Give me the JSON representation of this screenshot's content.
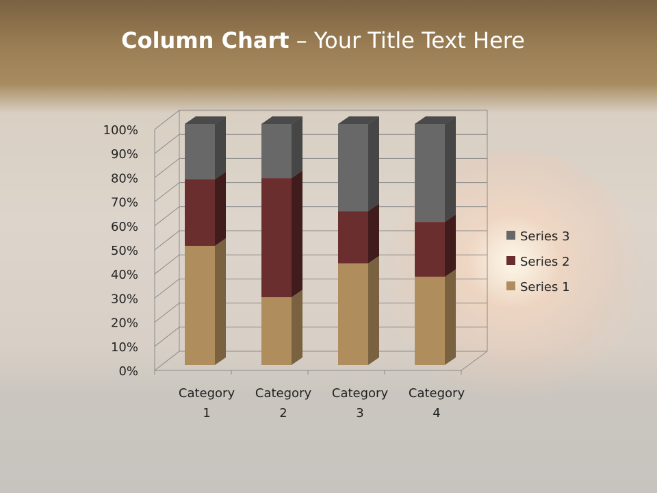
{
  "title": {
    "bold": "Column Chart",
    "rest": " – Your Title Text Here"
  },
  "chart_data": {
    "type": "bar",
    "stacking": "percent",
    "style": "3d",
    "categories": [
      "Category 1",
      "Category 2",
      "Category 3",
      "Category 4"
    ],
    "category_lines": [
      [
        "Category",
        "1"
      ],
      [
        "Category",
        "2"
      ],
      [
        "Category",
        "3"
      ],
      [
        "Category",
        "4"
      ]
    ],
    "series": [
      {
        "name": "Series 1",
        "values": [
          4.3,
          2.5,
          3.5,
          4.5
        ],
        "color": "#b08d5c",
        "side": "#7a6240"
      },
      {
        "name": "Series 2",
        "values": [
          2.4,
          4.4,
          1.8,
          2.8
        ],
        "color": "#6b2e2e",
        "side": "#401c1c"
      },
      {
        "name": "Series 3",
        "values": [
          2,
          2,
          3,
          5
        ],
        "color": "#686868",
        "side": "#464646"
      }
    ],
    "yticks": [
      "0%",
      "10%",
      "20%",
      "30%",
      "40%",
      "50%",
      "60%",
      "70%",
      "80%",
      "90%",
      "100%"
    ],
    "ylim": [
      0,
      100
    ],
    "grid": true,
    "legend": "right"
  }
}
